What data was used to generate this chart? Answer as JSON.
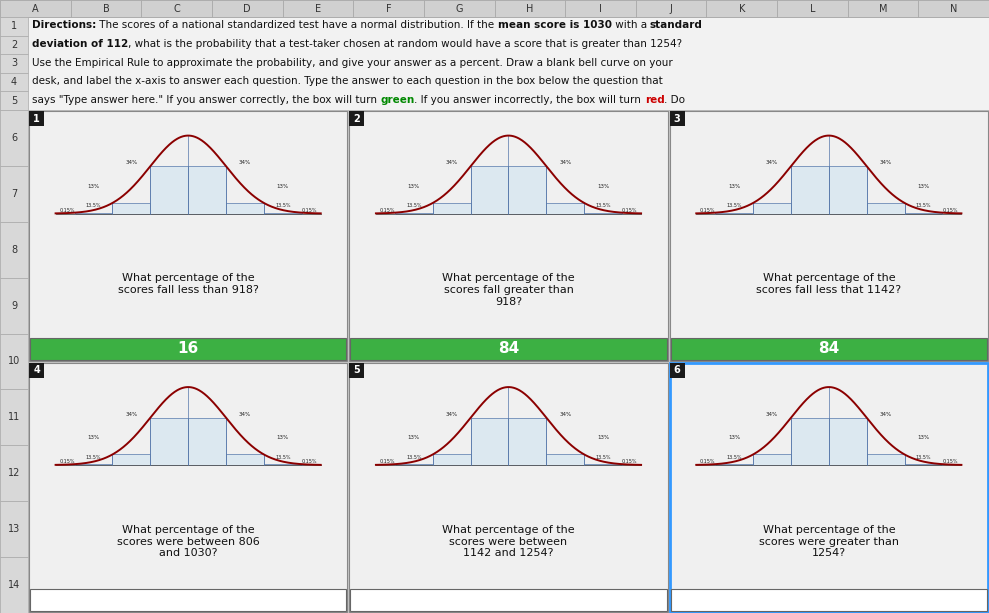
{
  "col_letters": [
    "A",
    "B",
    "C",
    "D",
    "E",
    "F",
    "G",
    "H",
    "I",
    "J",
    "K",
    "L",
    "M",
    "N"
  ],
  "directions_lines": [
    "Directions: The scores of a national standardized test have a normal distribution. If the mean score is 1030 with a standard",
    "deviation of 112, what is the probability that a test-taker chosen at random would have a score that is greater than 1254?",
    "Use the Empirical Rule to approximate the probability, and give your answer as a percent. Draw a blank bell curve on your",
    "desk, and label the x-axis to answer each question. Type the answer to each question in the box below the question that",
    "says \"Type answer here.\" If you answer correctly, the box will turn green. If you answer incorrectly, the box will turn red. Do"
  ],
  "bold_words": [
    "Directions:",
    "mean score is 1030",
    "standard",
    "deviation of 112",
    "green",
    "red"
  ],
  "panels": [
    {
      "number": "1",
      "question": "What percentage of the\nscores fall less than 918?",
      "answer": "16",
      "answer_bg": "#3cb043",
      "has_answer": true,
      "highlighted": false
    },
    {
      "number": "2",
      "question": "What percentage of the\nscores fall greater than\n918?",
      "answer": "84",
      "answer_bg": "#3cb043",
      "has_answer": true,
      "highlighted": false
    },
    {
      "number": "3",
      "question": "What percentage of the\nscores fall less that 1142?",
      "answer": "84",
      "answer_bg": "#3cb043",
      "has_answer": true,
      "highlighted": false
    },
    {
      "number": "4",
      "question": "What percentage of the\nscores were between 806\nand 1030?",
      "answer": "",
      "answer_bg": "#ffffff",
      "has_answer": false,
      "highlighted": false
    },
    {
      "number": "5",
      "question": "What percentage of the\nscores were between\n1142 and 1254?",
      "answer": "",
      "answer_bg": "#ffffff",
      "has_answer": false,
      "highlighted": false
    },
    {
      "number": "6",
      "question": "What percentage of the\nscores were greater than\n1254?",
      "answer": "",
      "answer_bg": "#ffffff",
      "has_answer": false,
      "highlighted": true
    }
  ],
  "curve_color": "#8b0000",
  "bar_fill": "#dce8f0",
  "bar_edge": "#5577aa",
  "fig_bg": "#c8c8c8",
  "panel_bg": "#f0f0f0",
  "header_row_bg": "#d0d0d0",
  "row_num_bg": "#d8d8d8",
  "dir_area_bg": "#f2f2f2",
  "number_badge_bg": "#1a1a1a",
  "green_answer": "#3cb043",
  "panel_border": "#888888",
  "highlight_border": "#3399ff"
}
